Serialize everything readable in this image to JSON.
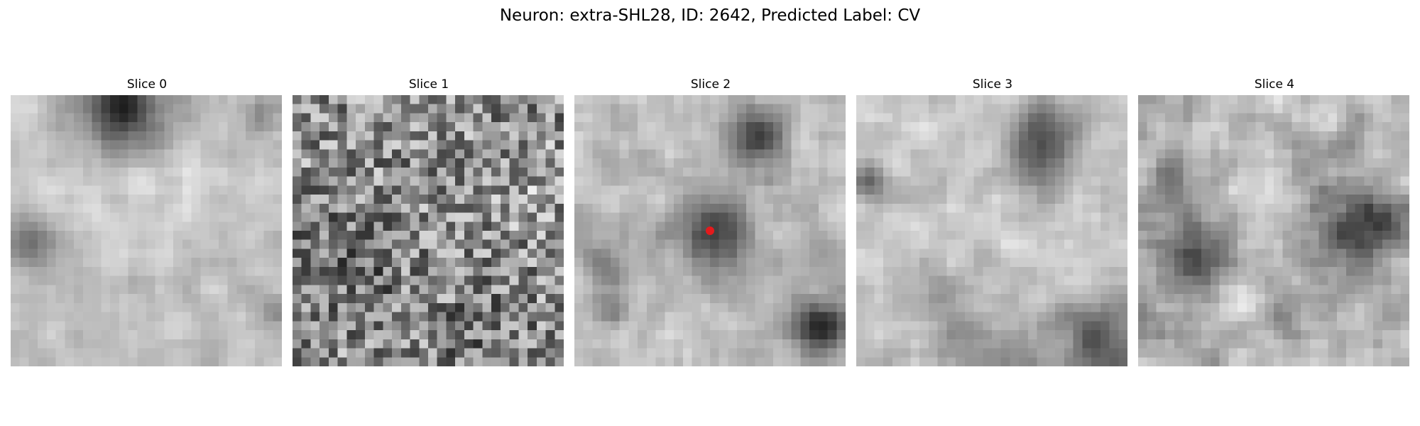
{
  "figure": {
    "title": "Neuron: extra-SHL28, ID: 2642, Predicted Label: CV"
  },
  "panels": [
    {
      "title": "Slice 0"
    },
    {
      "title": "Slice 1"
    },
    {
      "title": "Slice 2",
      "marker": {
        "color": "#e41a1c"
      }
    },
    {
      "title": "Slice 3"
    },
    {
      "title": "Slice 4"
    }
  ],
  "colors": {
    "marker": "#e41a1c"
  }
}
